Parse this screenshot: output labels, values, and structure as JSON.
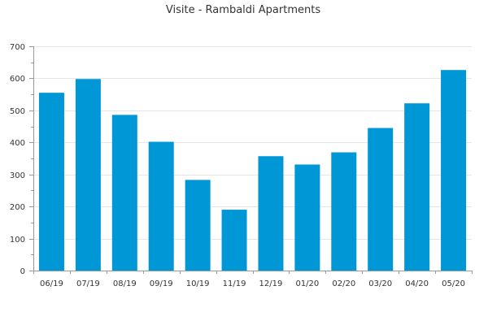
{
  "chart_data": {
    "type": "bar",
    "title": "Visite - Rambaldi Apartments",
    "xlabel": "",
    "ylabel": "",
    "categories": [
      "06/19",
      "07/19",
      "08/19",
      "09/19",
      "10/19",
      "11/19",
      "12/19",
      "01/20",
      "02/20",
      "03/20",
      "04/20",
      "05/20"
    ],
    "values": [
      555,
      598,
      486,
      402,
      283,
      190,
      357,
      331,
      369,
      445,
      522,
      626
    ],
    "ylim": [
      0,
      700
    ],
    "yticks": [
      0,
      100,
      200,
      300,
      400,
      500,
      600,
      700
    ],
    "grid": true,
    "legend": "none",
    "colors": {
      "bar": "#0097d6",
      "grid": "#e6e6e6",
      "axis": "#999999",
      "text": "#333333"
    }
  }
}
